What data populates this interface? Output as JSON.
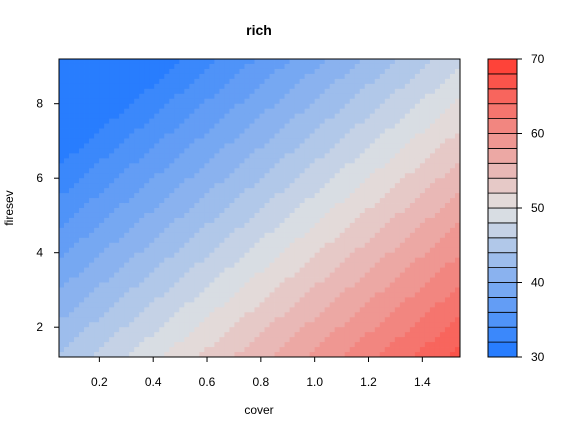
{
  "chart_data": {
    "type": "heatmap",
    "title": "rich",
    "xlabel": "cover",
    "ylabel": "firesev",
    "xlim": [
      0.05,
      1.54
    ],
    "ylim": [
      1.2,
      9.2
    ],
    "xticks": [
      0.2,
      0.4,
      0.6,
      0.8,
      1.0,
      1.2,
      1.4
    ],
    "xtick_labels": [
      "0.2",
      "0.4",
      "0.6",
      "0.8",
      "1.0",
      "1.2",
      "1.4"
    ],
    "yticks": [
      2,
      4,
      6,
      8
    ],
    "ytick_labels": [
      "2",
      "4",
      "6",
      "8"
    ],
    "surface": {
      "description": "linear trend in cover and firesev",
      "z_at_xmin_ymax": 31,
      "z_at_xmax_ymin": 69,
      "intercept": 46.4,
      "cover_coef": 15.0,
      "firesev_coef": -2.4
    },
    "colorkey": {
      "range": [
        30,
        70
      ],
      "ticks": [
        30,
        40,
        50,
        60,
        70
      ],
      "tick_labels": [
        "30",
        "40",
        "50",
        "60",
        "70"
      ],
      "levels": 20,
      "low_color": "#1E78FF",
      "mid_color": "#E2E2E2",
      "high_color": "#FF3B30"
    }
  }
}
